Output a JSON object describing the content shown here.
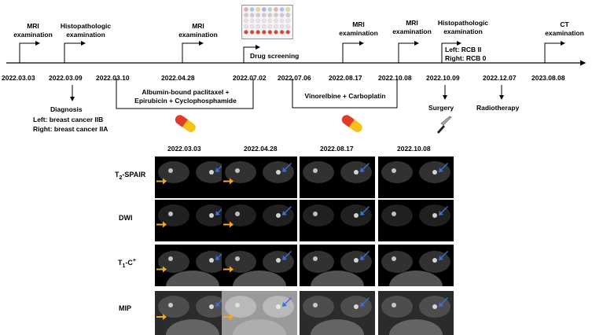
{
  "timeline": {
    "events_top": [
      {
        "id": "mri1",
        "text": "MRI\nexamination"
      },
      {
        "id": "histo1",
        "text": "Histopathologic\nexamination"
      },
      {
        "id": "mri2",
        "text": "MRI\nexamination"
      },
      {
        "id": "drug",
        "text": "Drug screening"
      },
      {
        "id": "mri3",
        "text": "MRI\nexamination"
      },
      {
        "id": "mri4",
        "text": "MRI\nexamination"
      },
      {
        "id": "histo2",
        "text": "Histopathologic\nexamination"
      },
      {
        "id": "ct",
        "text": "CT\nexamination"
      }
    ],
    "rcb": {
      "left": "Left: RCB II",
      "right": "Right: RCB 0"
    },
    "dates": [
      "2022.03.03",
      "2022.03.09",
      "2022.03.10",
      "2022.04.28",
      "2022.07.02",
      "2022.07.06",
      "2022.08.17",
      "2022.10.08",
      "2022.10.09",
      "2022.12.07",
      "2023.08.08"
    ],
    "diagnosis": {
      "title": "Diagnosis",
      "left": "Left: breast cancer IIB",
      "right": "Right: breast cancer IIA"
    },
    "regimen1": {
      "line1": "Albumin-bound paclitaxel +",
      "line2": "Epirubicin + Cyclophosphamide"
    },
    "regimen2": "Vinorelbine + Carboplatin",
    "surgery": "Surgery",
    "radiotherapy": "Radiotherapy"
  },
  "grid": {
    "columns": [
      "2022.03.03",
      "2022.04.28",
      "2022.08.17",
      "2022.10.08"
    ],
    "rows": [
      "T2-SPAIR",
      "DWI",
      "T1-C+",
      "MIP"
    ]
  },
  "colors": {
    "left_arrow": "#f5a623",
    "right_arrow": "#3b6fd6",
    "pill_red": "#e23b2a",
    "pill_yellow": "#f4c31a"
  }
}
